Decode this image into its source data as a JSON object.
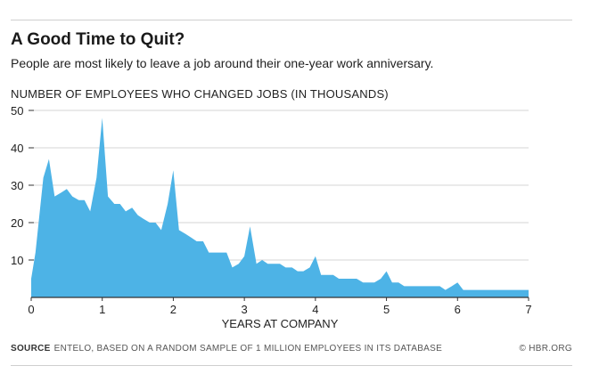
{
  "header": {
    "title": "A Good Time to Quit?",
    "subtitle": "People are most likely to leave a job around their one-year work anniversary."
  },
  "footer": {
    "source_label": "SOURCE",
    "source_text": "ENTELO, BASED ON A RANDOM SAMPLE OF 1 MILLION EMPLOYEES IN ITS DATABASE",
    "credit": "© HBR.ORG"
  },
  "colors": {
    "area": "#4db3e6",
    "grid": "#d6d6d6",
    "axis": "#333333"
  },
  "chart_data": {
    "type": "area",
    "title": "A Good Time to Quit?",
    "subtitle": "People are most likely to leave a job around their one-year work anniversary.",
    "ylabel": "NUMBER OF EMPLOYEES WHO CHANGED JOBS (IN THOUSANDS)",
    "xlabel": "YEARS AT COMPANY",
    "xlim": [
      0,
      7
    ],
    "ylim": [
      0,
      50
    ],
    "xticks": [
      0,
      1,
      2,
      3,
      4,
      5,
      6,
      7
    ],
    "yticks": [
      10,
      20,
      30,
      40,
      50
    ],
    "grid": true,
    "series": [
      {
        "x": [
          0,
          0.06,
          0.17,
          0.25,
          0.33,
          0.42,
          0.5,
          0.58,
          0.67,
          0.75,
          0.83,
          0.92,
          1.0,
          1.08,
          1.17,
          1.25,
          1.33,
          1.42,
          1.5,
          1.58,
          1.67,
          1.75,
          1.83,
          1.92,
          2.0,
          2.08,
          2.17,
          2.25,
          2.33,
          2.42,
          2.5,
          2.58,
          2.67,
          2.75,
          2.83,
          2.92,
          3.0,
          3.08,
          3.17,
          3.25,
          3.33,
          3.42,
          3.5,
          3.58,
          3.67,
          3.75,
          3.83,
          3.92,
          4.0,
          4.08,
          4.17,
          4.25,
          4.33,
          4.42,
          4.5,
          4.58,
          4.67,
          4.75,
          4.83,
          4.92,
          5.0,
          5.08,
          5.17,
          5.25,
          5.33,
          5.42,
          5.5,
          5.58,
          5.67,
          5.75,
          5.83,
          5.92,
          6.0,
          6.08,
          6.17,
          6.25,
          6.33,
          6.5,
          6.67,
          6.83,
          7.0
        ],
        "values": [
          5,
          12,
          32,
          37,
          27,
          28,
          29,
          27,
          26,
          26,
          23,
          32,
          48,
          27,
          25,
          25,
          23,
          24,
          22,
          21,
          20,
          20,
          18,
          25,
          34,
          18,
          17,
          16,
          15,
          15,
          12,
          12,
          12,
          12,
          8,
          9,
          11,
          19,
          9,
          10,
          9,
          9,
          9,
          8,
          8,
          7,
          7,
          8,
          11,
          6,
          6,
          6,
          5,
          5,
          5,
          5,
          4,
          4,
          4,
          5,
          7,
          4,
          4,
          3,
          3,
          3,
          3,
          3,
          3,
          3,
          2,
          3,
          4,
          2,
          2,
          2,
          2,
          2,
          2,
          2,
          2
        ]
      }
    ]
  }
}
